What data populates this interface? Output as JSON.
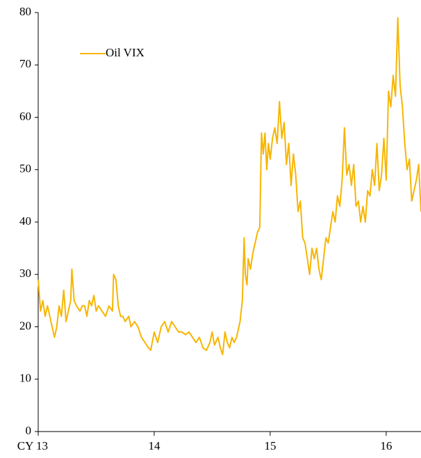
{
  "chart_data": {
    "type": "line",
    "xlim": [
      13,
      16.3
    ],
    "ylim": [
      0,
      80
    ],
    "xticks": [
      {
        "value": 13,
        "label": "CY 13"
      },
      14,
      15,
      16
    ],
    "yticks": [
      0,
      10,
      20,
      30,
      40,
      50,
      60,
      70,
      80
    ],
    "legend": "upper left",
    "series": [
      {
        "name": "Oil VIX",
        "color": "#f7b500",
        "x": [
          13.0,
          13.02,
          13.04,
          13.06,
          13.08,
          13.1,
          13.12,
          13.14,
          13.16,
          13.18,
          13.2,
          13.22,
          13.24,
          13.26,
          13.28,
          13.29,
          13.31,
          13.33,
          13.36,
          13.38,
          13.4,
          13.42,
          13.44,
          13.46,
          13.48,
          13.5,
          13.52,
          13.55,
          13.58,
          13.61,
          13.64,
          13.65,
          13.67,
          13.69,
          13.71,
          13.73,
          13.75,
          13.78,
          13.8,
          13.83,
          13.86,
          13.89,
          13.92,
          13.95,
          13.97,
          14.0,
          14.03,
          14.06,
          14.09,
          14.12,
          14.15,
          14.18,
          14.21,
          14.24,
          14.27,
          14.3,
          14.33,
          14.36,
          14.39,
          14.42,
          14.45,
          14.48,
          14.5,
          14.52,
          14.55,
          14.57,
          14.59,
          14.61,
          14.63,
          14.65,
          14.67,
          14.69,
          14.71,
          14.72,
          14.74,
          14.76,
          14.775,
          14.785,
          14.8,
          14.81,
          14.83,
          14.85,
          14.87,
          14.89,
          14.91,
          14.925,
          14.94,
          14.955,
          14.97,
          14.985,
          15.0,
          15.02,
          15.04,
          15.06,
          15.08,
          15.1,
          15.12,
          15.14,
          15.16,
          15.18,
          15.2,
          15.22,
          15.24,
          15.26,
          15.28,
          15.3,
          15.32,
          15.34,
          15.36,
          15.38,
          15.4,
          15.42,
          15.44,
          15.46,
          15.48,
          15.5,
          15.52,
          15.54,
          15.56,
          15.58,
          15.6,
          15.62,
          15.64,
          15.66,
          15.68,
          15.7,
          15.72,
          15.74,
          15.76,
          15.78,
          15.8,
          15.82,
          15.84,
          15.86,
          15.88,
          15.9,
          15.92,
          15.94,
          15.96,
          15.98,
          16.0,
          16.02,
          16.04,
          16.06,
          16.08,
          16.1,
          16.12,
          16.14,
          16.16,
          16.18,
          16.2,
          16.22,
          16.24,
          16.26,
          16.28,
          16.3
        ],
        "values": [
          29,
          23,
          25,
          22,
          24,
          22,
          20,
          18,
          20,
          24,
          22,
          27,
          21,
          23,
          25,
          31,
          25,
          24,
          23,
          24,
          24,
          22,
          25,
          24,
          26,
          23,
          24,
          23,
          22,
          24,
          23,
          30,
          29,
          24,
          22,
          22,
          21,
          22,
          20,
          21,
          20,
          18,
          17,
          16,
          15.5,
          19,
          17,
          20,
          21,
          19,
          21,
          20,
          19,
          19,
          18.5,
          19,
          18,
          17,
          18,
          16,
          15.5,
          17,
          19,
          16.5,
          18,
          16,
          14.7,
          19,
          17,
          16,
          18,
          17,
          18,
          19,
          21,
          25,
          37,
          30,
          28,
          33,
          31,
          34,
          36,
          38,
          39,
          57,
          53,
          57,
          50,
          55,
          52,
          56,
          58,
          55,
          63,
          56,
          59,
          51,
          55,
          47,
          53,
          49,
          42,
          44,
          37,
          36,
          33,
          30,
          35,
          33,
          35,
          31,
          29,
          33,
          37,
          36,
          39,
          42,
          40,
          45,
          43,
          48,
          58,
          49,
          51,
          47,
          51,
          43,
          44,
          40,
          43,
          40,
          46,
          45,
          50,
          47,
          55,
          46,
          49,
          56,
          48,
          65,
          62,
          68,
          64,
          79,
          66,
          62,
          55,
          50,
          52,
          44,
          46,
          48,
          51,
          42
        ]
      }
    ]
  }
}
